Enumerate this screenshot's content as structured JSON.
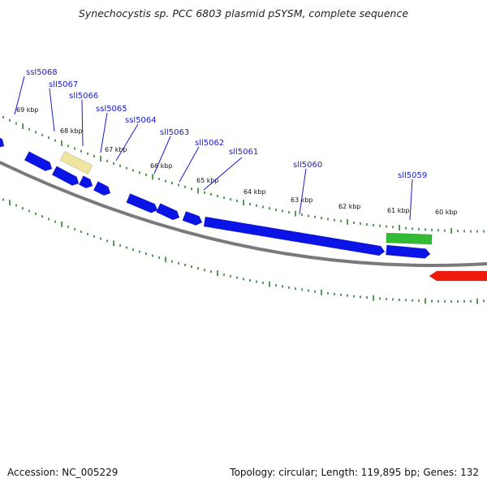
{
  "title": "Synechocystis sp. PCC 6803 plasmid pSYSM, complete sequence",
  "footer": {
    "accession": "Accession: NC_005229",
    "summary": "Topology: circular; Length: 119,895 bp; Genes: 132"
  },
  "colors": {
    "forward_cds": "#0a14e6",
    "reverse_cds": "#ee1a0a",
    "gene_label": "#1a1acc",
    "backbone": "#7a7a7a",
    "tick": "#1f7a1f",
    "pale_feature": "#f0e6a0",
    "green_feature": "#33bb33"
  },
  "kbp_labels": [
    "69 kbp",
    "68 kbp",
    "67 kbp",
    "66 kbp",
    "65 kbp",
    "64 kbp",
    "63 kbp",
    "62 kbp",
    "61 kbp",
    "60 kbp"
  ],
  "gene_labels": [
    "ssl5068",
    "sll5067",
    "sll5066",
    "ssl5065",
    "ssl5064",
    "sll5063",
    "sll5062",
    "sll5061",
    "sll5060",
    "sll5059"
  ]
}
